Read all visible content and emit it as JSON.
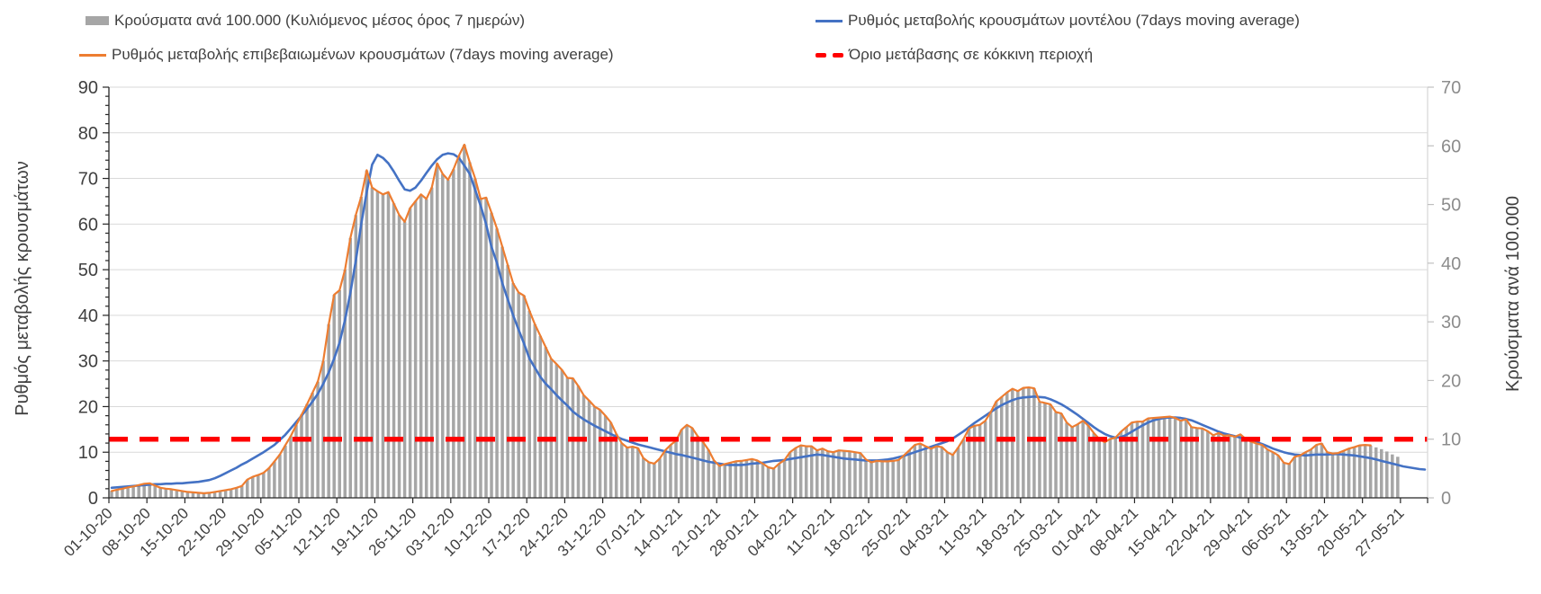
{
  "chart_data": {
    "type": "combo",
    "title": "",
    "x_axis": {
      "tick_labels": [
        "01-10-20",
        "08-10-20",
        "15-10-20",
        "22-10-20",
        "29-10-20",
        "05-11-20",
        "12-11-20",
        "19-11-20",
        "26-11-20",
        "03-12-20",
        "10-12-20",
        "17-12-20",
        "24-12-20",
        "31-12-20",
        "07-01-21",
        "14-01-21",
        "21-01-21",
        "28-01-21",
        "04-02-21",
        "11-02-21",
        "18-02-21",
        "25-02-21",
        "04-03-21",
        "11-03-21",
        "18-03-21",
        "25-03-21",
        "01-04-21",
        "08-04-21",
        "15-04-21",
        "22-04-21",
        "29-04-21",
        "06-05-21",
        "13-05-21",
        "20-05-21",
        "27-05-21"
      ],
      "tick_interval_days": 7,
      "unit": "day"
    },
    "total_days": 243,
    "left_axis": {
      "label": "Ρυθμός μεταβολής κρουσμάτων",
      "min": 0,
      "max": 90,
      "step": 10
    },
    "right_axis": {
      "label": "Κρούσματα ανά 100.000",
      "min": 0,
      "max": 70,
      "step": 10
    },
    "grid": "horizontal",
    "legend_position": "top",
    "series": [
      {
        "key": "cases-per-100k",
        "name": "Κρούσματα ανά 100.000 (Κυλιόμενος μέσος όρος 7 ημερών)",
        "type": "bar",
        "axis": "right",
        "color": "#a6a6a6",
        "values": [
          1.2,
          1.4,
          1.6,
          1.8,
          1.9,
          2.2,
          2.4,
          2.6,
          2.1,
          1.7,
          1.6,
          1.5,
          1.3,
          1.2,
          1.0,
          0.9,
          0.9,
          0.8,
          0.9,
          1.0,
          1.2,
          1.3,
          1.5,
          1.7,
          2.0,
          3.1,
          3.6,
          3.9,
          4.3,
          5.1,
          6.2,
          7.4,
          8.9,
          10.5,
          12.4,
          14.2,
          16.0,
          17.9,
          19.8,
          23.3,
          29.6,
          34.6,
          35.4,
          38.9,
          44.3,
          48.2,
          51.3,
          55.8,
          52.9,
          52.3,
          51.7,
          52.1,
          50.2,
          48.2,
          47.1,
          49.4,
          50.6,
          51.7,
          50.9,
          52.9,
          57.0,
          55.2,
          54.2,
          56.0,
          58.3,
          60.2,
          57.2,
          54.4,
          51.0,
          51.2,
          48.6,
          45.9,
          42.8,
          39.7,
          36.6,
          35.0,
          34.5,
          31.9,
          29.6,
          27.6,
          25.7,
          23.7,
          22.8,
          21.8,
          20.5,
          20.4,
          19.1,
          17.5,
          16.6,
          15.6,
          15.0,
          14.0,
          12.8,
          10.9,
          9.3,
          8.6,
          8.7,
          8.5,
          6.8,
          6.1,
          5.8,
          6.7,
          8.1,
          9.0,
          9.7,
          11.6,
          12.4,
          11.9,
          10.5,
          9.5,
          8.2,
          6.4,
          5.4,
          5.8,
          6.0,
          6.2,
          6.3,
          6.5,
          6.6,
          6.4,
          5.8,
          5.2,
          5.0,
          5.8,
          6.5,
          7.8,
          8.5,
          8.9,
          8.8,
          8.8,
          8.1,
          8.4,
          7.9,
          7.8,
          8.1,
          8.0,
          7.9,
          7.8,
          7.6,
          6.5,
          6.1,
          6.3,
          6.2,
          6.2,
          6.3,
          6.5,
          7.2,
          8.1,
          9.0,
          9.3,
          8.8,
          8.4,
          8.8,
          8.6,
          7.8,
          7.3,
          8.6,
          10.0,
          11.8,
          12.3,
          12.4,
          13.1,
          14.6,
          16.4,
          17.2,
          18.0,
          18.6,
          18.2,
          18.7,
          18.8,
          18.7,
          16.4,
          16.2,
          15.9,
          14.6,
          14.4,
          12.8,
          12.1,
          12.5,
          13.1,
          12.3,
          11.0,
          10.0,
          9.5,
          10.0,
          10.3,
          11.3,
          12.1,
          12.8,
          13.0,
          13.0,
          13.5,
          13.6,
          13.7,
          13.8,
          13.8,
          13.6,
          13.1,
          13.4,
          12.1,
          11.9,
          11.8,
          11.4,
          10.7,
          11.0,
          10.6,
          10.7,
          10.4,
          10.8,
          10.0,
          9.6,
          9.3,
          9.0,
          8.2,
          7.8,
          7.2,
          6.0,
          5.8,
          7.0,
          7.2,
          7.8,
          8.2,
          9.0,
          9.3,
          7.8,
          7.5,
          7.6,
          8.0,
          8.4,
          8.6,
          8.9,
          9.0,
          8.9,
          8.6,
          8.3,
          7.9,
          7.4,
          7.0
        ]
      },
      {
        "key": "confirmed-rate",
        "name": "Ρυθμός μεταβολής επιβεβαιωμένων κρουσμάτων (7days moving average)",
        "type": "line",
        "axis": "left",
        "color": "#ed7d31",
        "values": [
          1.5,
          1.8,
          2.0,
          2.3,
          2.5,
          2.8,
          3.1,
          3.2,
          2.7,
          2.2,
          2.0,
          1.9,
          1.7,
          1.5,
          1.3,
          1.2,
          1.1,
          1.0,
          1.1,
          1.3,
          1.5,
          1.7,
          1.9,
          2.2,
          2.6,
          4.0,
          4.6,
          5.0,
          5.5,
          6.5,
          8.0,
          9.5,
          11.5,
          13.5,
          15.9,
          18.2,
          20.5,
          23.0,
          25.5,
          30.0,
          38.0,
          44.5,
          45.5,
          50.0,
          57.0,
          62.0,
          66.0,
          71.8,
          68.0,
          67.2,
          66.5,
          67.0,
          64.5,
          62.0,
          60.5,
          63.5,
          65.0,
          66.5,
          65.5,
          68.0,
          73.3,
          71.0,
          69.7,
          72.0,
          75.0,
          77.4,
          73.5,
          70.0,
          65.5,
          65.8,
          62.5,
          59.0,
          55.0,
          51.0,
          47.0,
          45.0,
          44.3,
          41.0,
          38.0,
          35.5,
          33.0,
          30.5,
          29.3,
          28.0,
          26.3,
          26.2,
          24.5,
          22.5,
          21.3,
          20.0,
          19.3,
          18.0,
          16.5,
          14.0,
          12.0,
          11.0,
          11.2,
          10.9,
          8.7,
          7.8,
          7.5,
          8.6,
          10.4,
          11.6,
          12.5,
          14.9,
          16.0,
          15.3,
          13.5,
          12.2,
          10.5,
          8.2,
          7.0,
          7.4,
          7.7,
          8.0,
          8.1,
          8.3,
          8.5,
          8.2,
          7.5,
          6.7,
          6.4,
          7.5,
          8.3,
          10.0,
          10.9,
          11.5,
          11.3,
          11.3,
          10.4,
          10.8,
          10.2,
          10.0,
          10.4,
          10.3,
          10.2,
          10.0,
          9.8,
          8.4,
          7.8,
          8.1,
          8.0,
          8.0,
          8.1,
          8.3,
          9.3,
          10.4,
          11.6,
          11.9,
          11.3,
          10.8,
          11.3,
          11.1,
          10.0,
          9.4,
          11.0,
          12.9,
          15.2,
          15.8,
          16.0,
          16.9,
          18.8,
          21.1,
          22.1,
          23.1,
          23.9,
          23.4,
          24.1,
          24.2,
          24.0,
          21.1,
          20.8,
          20.5,
          18.8,
          18.5,
          16.5,
          15.5,
          16.1,
          16.9,
          15.8,
          14.2,
          12.9,
          12.2,
          12.9,
          13.2,
          14.5,
          15.5,
          16.5,
          16.7,
          16.7,
          17.4,
          17.5,
          17.6,
          17.7,
          17.8,
          17.5,
          16.9,
          17.2,
          15.5,
          15.3,
          15.2,
          14.6,
          13.7,
          14.2,
          13.6,
          13.7,
          13.4,
          13.9,
          12.9,
          12.3,
          11.9,
          11.6,
          10.6,
          10.0,
          9.3,
          7.7,
          7.4,
          9.0,
          9.3,
          10.0,
          10.6,
          11.6,
          11.9,
          10.0,
          9.7,
          9.8,
          10.3,
          10.8,
          11.1,
          11.5,
          11.6,
          11.5
        ]
      },
      {
        "key": "model-rate",
        "name": "Ρυθμός μεταβολής κρουσμάτων μοντέλου (7days moving average)",
        "type": "line",
        "axis": "left",
        "color": "#4472c4",
        "values": [
          2.2,
          2.3,
          2.4,
          2.5,
          2.6,
          2.7,
          2.8,
          2.9,
          3.0,
          3.0,
          3.1,
          3.1,
          3.2,
          3.2,
          3.3,
          3.4,
          3.5,
          3.7,
          3.9,
          4.3,
          4.8,
          5.4,
          6.0,
          6.6,
          7.3,
          7.9,
          8.6,
          9.3,
          10.0,
          10.8,
          11.6,
          12.7,
          13.8,
          15.2,
          16.6,
          18.0,
          19.5,
          21.1,
          22.8,
          25.0,
          27.5,
          30.5,
          34.0,
          39.0,
          45.0,
          52.0,
          60.0,
          67.0,
          73.0,
          75.2,
          74.5,
          73.3,
          71.5,
          69.5,
          67.6,
          67.3,
          68.0,
          69.5,
          71.2,
          72.8,
          74.2,
          75.2,
          75.5,
          75.3,
          74.5,
          72.8,
          71.0,
          67.5,
          64.0,
          60.0,
          55.0,
          51.5,
          47.0,
          43.5,
          40.0,
          36.8,
          33.8,
          30.5,
          28.5,
          26.5,
          25.0,
          23.8,
          22.5,
          21.3,
          20.2,
          18.9,
          18.0,
          17.2,
          16.5,
          15.8,
          15.2,
          14.6,
          14.0,
          13.4,
          12.9,
          12.5,
          12.1,
          11.7,
          11.4,
          11.1,
          10.8,
          10.5,
          10.2,
          9.9,
          9.6,
          9.4,
          9.1,
          8.8,
          8.5,
          8.2,
          7.9,
          7.7,
          7.5,
          7.3,
          7.2,
          7.2,
          7.2,
          7.3,
          7.5,
          7.6,
          7.7,
          7.9,
          8.1,
          8.2,
          8.3,
          8.5,
          8.7,
          8.9,
          9.1,
          9.3,
          9.5,
          9.4,
          9.2,
          9.0,
          8.8,
          8.6,
          8.5,
          8.4,
          8.3,
          8.2,
          8.2,
          8.2,
          8.3,
          8.4,
          8.6,
          8.9,
          9.2,
          9.6,
          10.0,
          10.4,
          10.8,
          11.2,
          11.6,
          12.0,
          12.4,
          13.0,
          13.8,
          14.6,
          15.5,
          16.4,
          17.2,
          18.0,
          18.8,
          19.6,
          20.3,
          20.9,
          21.4,
          21.8,
          22.0,
          22.1,
          22.2,
          22.1,
          22.0,
          21.6,
          21.1,
          20.5,
          19.8,
          19.0,
          18.2,
          17.3,
          16.4,
          15.5,
          14.7,
          14.0,
          13.5,
          13.2,
          13.3,
          13.8,
          14.5,
          15.2,
          15.9,
          16.5,
          17.0,
          17.3,
          17.5,
          17.6,
          17.6,
          17.5,
          17.3,
          17.0,
          16.5,
          16.0,
          15.5,
          15.0,
          14.5,
          14.1,
          13.8,
          13.5,
          13.2,
          12.9,
          12.6,
          12.2,
          11.8,
          11.3,
          10.8,
          10.4,
          10.0,
          9.7,
          9.5,
          9.4,
          9.3,
          9.4,
          9.5,
          9.5,
          9.5,
          9.6,
          9.6,
          9.5,
          9.4,
          9.3,
          9.1,
          8.9,
          8.7,
          8.4,
          8.1,
          7.8,
          7.5,
          7.2,
          6.9,
          6.7,
          6.5,
          6.3,
          6.2
        ]
      },
      {
        "key": "red-threshold",
        "name": "Όριο μετάβασης σε κόκκινη περιοχή",
        "type": "threshold",
        "axis": "right",
        "color": "#ff0000",
        "value": 10
      }
    ]
  }
}
